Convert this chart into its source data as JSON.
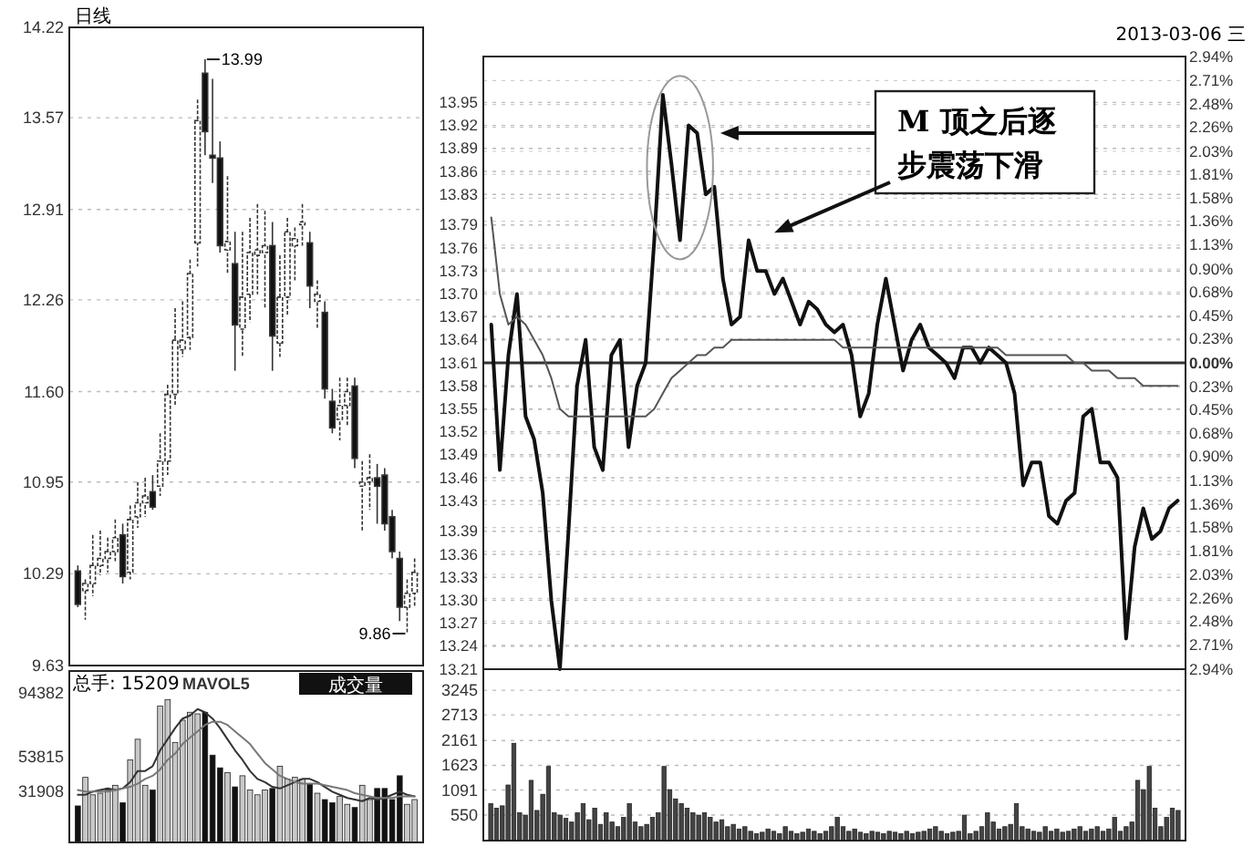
{
  "chart_data": [
    {
      "type": "candlestick",
      "categories": [
        null,
        null,
        null,
        null,
        null,
        null,
        null,
        null,
        null,
        null,
        null,
        null,
        null,
        null,
        null,
        null,
        null,
        null,
        null,
        null,
        null,
        null,
        null,
        null,
        null,
        null,
        null,
        null,
        null,
        null,
        null,
        null,
        null,
        null,
        null,
        null,
        null,
        null,
        null,
        null,
        null,
        null,
        null,
        null,
        null,
        null
      ],
      "ohlc": [
        [
          10.31,
          10.35,
          10.05,
          10.07
        ],
        [
          10.17,
          10.25,
          9.96,
          10.22
        ],
        [
          10.22,
          10.57,
          10.13,
          10.35
        ],
        [
          10.35,
          10.6,
          10.28,
          10.4
        ],
        [
          10.4,
          10.55,
          10.3,
          10.45
        ],
        [
          10.45,
          10.68,
          10.38,
          10.55
        ],
        [
          10.57,
          10.65,
          10.22,
          10.27
        ],
        [
          10.3,
          10.78,
          10.25,
          10.68
        ],
        [
          10.7,
          10.95,
          10.62,
          10.8
        ],
        [
          10.8,
          10.98,
          10.7,
          10.85
        ],
        [
          10.88,
          11.0,
          10.75,
          10.77
        ],
        [
          10.92,
          11.3,
          10.85,
          11.1
        ],
        [
          11.1,
          11.65,
          11.0,
          11.58
        ],
        [
          11.58,
          12.2,
          11.5,
          11.97
        ],
        [
          11.9,
          12.25,
          11.85,
          11.97
        ],
        [
          11.99,
          12.55,
          11.9,
          12.45
        ],
        [
          12.67,
          13.7,
          12.5,
          13.55
        ],
        [
          13.89,
          13.99,
          13.3,
          13.47
        ],
        [
          13.3,
          13.85,
          13.1,
          13.28
        ],
        [
          13.28,
          13.4,
          12.6,
          12.65
        ],
        [
          12.62,
          13.15,
          12.45,
          12.68
        ],
        [
          12.52,
          12.75,
          11.75,
          12.08
        ],
        [
          12.05,
          12.75,
          11.85,
          12.28
        ],
        [
          12.3,
          12.85,
          12.1,
          12.6
        ],
        [
          12.58,
          12.95,
          12.3,
          12.62
        ],
        [
          12.6,
          12.9,
          12.2,
          12.65
        ],
        [
          12.65,
          12.82,
          11.75,
          12.0
        ],
        [
          11.95,
          12.58,
          11.85,
          12.28
        ],
        [
          12.28,
          12.85,
          12.15,
          12.75
        ],
        [
          12.65,
          12.78,
          12.4,
          12.7
        ],
        [
          12.8,
          12.95,
          12.65,
          12.82
        ],
        [
          12.67,
          12.75,
          12.2,
          12.36
        ],
        [
          12.25,
          12.4,
          12.05,
          12.3
        ],
        [
          12.17,
          12.25,
          11.55,
          11.62
        ],
        [
          11.53,
          11.62,
          11.3,
          11.34
        ],
        [
          11.4,
          11.7,
          11.25,
          11.5
        ],
        [
          11.5,
          11.7,
          11.35,
          11.6
        ],
        [
          11.64,
          11.7,
          11.05,
          11.12
        ],
        [
          10.92,
          11.1,
          10.6,
          10.95
        ],
        [
          10.95,
          11.15,
          10.75,
          10.98
        ],
        [
          10.98,
          11.08,
          10.65,
          10.92
        ],
        [
          11.0,
          11.05,
          10.6,
          10.65
        ],
        [
          10.7,
          10.75,
          10.4,
          10.45
        ],
        [
          10.4,
          10.45,
          9.95,
          10.05
        ],
        [
          10.05,
          10.25,
          9.86,
          10.15
        ],
        [
          10.15,
          10.4,
          10.05,
          10.3
        ]
      ],
      "ylim": [
        9.63,
        14.22
      ],
      "yticks": [
        9.63,
        10.29,
        10.95,
        {
          "value": 11.6,
          "label": "11.60"
        },
        12.26,
        12.91,
        13.57,
        14.22
      ],
      "grid": "y",
      "annotations": [
        "日线",
        "13.99",
        "9.86"
      ]
    },
    {
      "type": "bar",
      "categories": [
        null,
        null,
        null,
        null,
        null,
        null,
        null,
        null,
        null,
        null,
        null,
        null,
        null,
        null,
        null,
        null,
        null,
        null,
        null,
        null,
        null,
        null,
        null,
        null,
        null,
        null,
        null,
        null,
        null,
        null,
        null,
        null,
        null,
        null,
        null,
        null,
        null,
        null,
        null,
        null,
        null,
        null,
        null,
        null,
        null,
        null
      ],
      "series": [
        {
          "type": "bar",
          "values": [
            23000,
            41000,
            30000,
            31000,
            33000,
            36000,
            25000,
            52000,
            65000,
            36000,
            33000,
            86000,
            90000,
            63000,
            77000,
            82000,
            81000,
            82000,
            55000,
            47000,
            44000,
            35000,
            42000,
            33000,
            30000,
            33000,
            34000,
            48000,
            40000,
            41000,
            40000,
            37000,
            31000,
            27000,
            25000,
            29000,
            24000,
            22000,
            36000,
            27000,
            34000,
            34000,
            27000,
            42000,
            24000,
            27000
          ],
          "colors": [
            "#111111",
            "#c8c8c8",
            "#c8c8c8",
            "#c8c8c8",
            "#c8c8c8",
            "#c8c8c8",
            "#111111",
            "#c8c8c8",
            "#c8c8c8",
            "#c8c8c8",
            "#111111",
            "#c8c8c8",
            "#c8c8c8",
            "#c8c8c8",
            "#c8c8c8",
            "#c8c8c8",
            "#c8c8c8",
            "#111111",
            "#111111",
            "#111111",
            "#c8c8c8",
            "#111111",
            "#c8c8c8",
            "#c8c8c8",
            "#c8c8c8",
            "#c8c8c8",
            "#111111",
            "#c8c8c8",
            "#c8c8c8",
            "#c8c8c8",
            "#c8c8c8",
            "#111111",
            "#c8c8c8",
            "#111111",
            "#111111",
            "#c8c8c8",
            "#c8c8c8",
            "#111111",
            "#c8c8c8",
            "#c8c8c8",
            "#111111",
            "#111111",
            "#111111",
            "#111111",
            "#c8c8c8",
            "#c8c8c8"
          ]
        },
        {
          "type": "line",
          "name": "MAVOL5",
          "color": "#333333",
          "values": [
            30000,
            30000,
            32000,
            33000,
            34000,
            33000,
            34000,
            38000,
            45000,
            45000,
            48000,
            58000,
            65000,
            72000,
            78000,
            80000,
            84000,
            82000,
            78000,
            72000,
            65000,
            58000,
            52000,
            45000,
            40000,
            38000,
            35000,
            34000,
            36000,
            38000,
            40000,
            40000,
            38000,
            35000,
            32000,
            30000,
            28000,
            27000,
            26000,
            28000,
            27000,
            28000,
            30000,
            32000,
            30000,
            29000
          ]
        },
        {
          "type": "line",
          "color": "#777777",
          "values": [
            33000,
            32000,
            32000,
            32000,
            32000,
            33000,
            34000,
            35000,
            37000,
            40000,
            42000,
            46000,
            52000,
            56000,
            62000,
            66000,
            70000,
            74000,
            76000,
            76000,
            74000,
            70000,
            66000,
            62000,
            56000,
            50000,
            46000,
            42000,
            40000,
            38000,
            37000,
            37000,
            37000,
            36000,
            35000,
            34000,
            33000,
            31000,
            30000,
            29000,
            28000,
            28000,
            28000,
            29000,
            29000,
            29000
          ]
        }
      ],
      "ylim": [
        0,
        108000
      ],
      "yticks": [
        31908,
        53815,
        94382
      ],
      "legend": "top left",
      "annotations": [
        "总手: 15209",
        "成交量"
      ]
    },
    {
      "type": "line",
      "categories": [
        null,
        null,
        null,
        null,
        null,
        null,
        null,
        null,
        null,
        null,
        null,
        null,
        null,
        null,
        null,
        null,
        null,
        null,
        null,
        null,
        null,
        null,
        null,
        null,
        null,
        null,
        null,
        null,
        null,
        null,
        null,
        null,
        null,
        null,
        null,
        null,
        null,
        null,
        null,
        null,
        null,
        null,
        null,
        null,
        null,
        null,
        null,
        null,
        null,
        null,
        null,
        null,
        null,
        null,
        null,
        null,
        null,
        null,
        null,
        null,
        null,
        null,
        null,
        null,
        null,
        null,
        null,
        null,
        null,
        null,
        null,
        null,
        null,
        null,
        null,
        null,
        null,
        null,
        null,
        null,
        null
      ],
      "series": [
        {
          "color": "#111111",
          "values": [
            13.66,
            13.47,
            13.62,
            13.7,
            13.54,
            13.51,
            13.44,
            13.3,
            13.21,
            13.39,
            13.58,
            13.64,
            13.5,
            13.47,
            13.62,
            13.64,
            13.5,
            13.58,
            13.61,
            13.77,
            13.96,
            13.87,
            13.77,
            13.92,
            13.91,
            13.83,
            13.84,
            13.72,
            13.66,
            13.67,
            13.77,
            13.73,
            13.73,
            13.7,
            13.72,
            13.69,
            13.66,
            13.69,
            13.68,
            13.66,
            13.65,
            13.66,
            13.62,
            13.54,
            13.57,
            13.66,
            13.72,
            13.66,
            13.6,
            13.64,
            13.66,
            13.63,
            13.62,
            13.61,
            13.59,
            13.63,
            13.63,
            13.61,
            13.63,
            13.62,
            13.61,
            13.57,
            13.45,
            13.48,
            13.48,
            13.41,
            13.4,
            13.43,
            13.44,
            13.54,
            13.55,
            13.48,
            13.48,
            13.46,
            13.25,
            13.37,
            13.42,
            13.38,
            13.39,
            13.42,
            13.43
          ]
        },
        {
          "color": "#555555",
          "values": [
            13.8,
            13.7,
            13.66,
            13.67,
            13.66,
            13.64,
            13.62,
            13.59,
            13.55,
            13.54,
            13.54,
            13.54,
            13.54,
            13.54,
            13.54,
            13.54,
            13.54,
            13.54,
            13.54,
            13.55,
            13.57,
            13.59,
            13.6,
            13.61,
            13.62,
            13.62,
            13.63,
            13.63,
            13.64,
            13.64,
            13.64,
            13.64,
            13.64,
            13.64,
            13.64,
            13.64,
            13.64,
            13.64,
            13.64,
            13.64,
            13.64,
            13.63,
            13.63,
            13.63,
            13.63,
            13.63,
            13.63,
            13.63,
            13.63,
            13.63,
            13.63,
            13.63,
            13.63,
            13.63,
            13.63,
            13.63,
            13.63,
            13.63,
            13.63,
            13.63,
            13.62,
            13.62,
            13.62,
            13.62,
            13.62,
            13.62,
            13.62,
            13.62,
            13.61,
            13.61,
            13.6,
            13.6,
            13.6,
            13.59,
            13.59,
            13.59,
            13.58,
            13.58,
            13.58,
            13.58,
            13.58
          ]
        }
      ],
      "ylim": [
        13.21,
        14.01
      ],
      "yticks": [
        13.21,
        13.24,
        13.27,
        {
          "value": 13.3,
          "label": "13.30"
        },
        13.33,
        13.36,
        13.39,
        13.43,
        13.46,
        13.49,
        13.52,
        13.55,
        13.58,
        13.61,
        13.64,
        13.67,
        {
          "value": 13.7,
          "label": "13.70"
        },
        13.73,
        13.76,
        13.79,
        13.83,
        13.86,
        13.89,
        13.92,
        13.95
      ],
      "y2lim": [
        -2.94,
        2.94
      ],
      "y2ticks": [
        {
          "value": 2.94,
          "label": "2.94%"
        },
        {
          "value": 2.71,
          "label": "2.71%"
        },
        {
          "value": 2.48,
          "label": "2.48%"
        },
        {
          "value": 2.26,
          "label": "2.26%"
        },
        {
          "value": 2.03,
          "label": "2.03%"
        },
        {
          "value": 1.81,
          "label": "1.81%"
        },
        {
          "value": 1.58,
          "label": "1.58%"
        },
        {
          "value": 1.36,
          "label": "1.36%"
        },
        {
          "value": 1.13,
          "label": "1.13%"
        },
        {
          "value": 0.9,
          "label": "0.90%"
        },
        {
          "value": 0.68,
          "label": "0.68%"
        },
        {
          "value": 0.45,
          "label": "0.45%"
        },
        {
          "value": 0.23,
          "label": "0.23%"
        },
        {
          "value": 0,
          "label": "0.00%"
        },
        {
          "value": -0.23,
          "label": "0.23%"
        },
        {
          "value": -0.45,
          "label": "0.45%"
        },
        {
          "value": -0.68,
          "label": "0.68%"
        },
        {
          "value": -0.9,
          "label": "0.90%"
        },
        {
          "value": -1.13,
          "label": "1.13%"
        },
        {
          "value": -1.36,
          "label": "1.36%"
        },
        {
          "value": -1.58,
          "label": "1.58%"
        },
        {
          "value": -1.81,
          "label": "1.81%"
        },
        {
          "value": -2.03,
          "label": "2.03%"
        },
        {
          "value": -2.26,
          "label": "2.26%"
        },
        {
          "value": -2.48,
          "label": "2.48%"
        },
        {
          "value": -2.71,
          "label": "2.71%"
        },
        {
          "value": -2.94,
          "label": "2.94%"
        }
      ],
      "ref_lines": [
        {
          "axis": "y2",
          "value": 0,
          "color": "#333333"
        }
      ],
      "grid": "y",
      "annotations": [
        "M 顶之后逐步震荡下滑",
        "2013-03-06 三"
      ]
    },
    {
      "type": "bar",
      "categories": [
        null,
        null,
        null,
        null,
        null,
        null,
        null,
        null,
        null,
        null,
        null,
        null,
        null,
        null,
        null,
        null,
        null,
        null,
        null,
        null,
        null,
        null,
        null,
        null,
        null,
        null,
        null,
        null,
        null,
        null,
        null,
        null,
        null,
        null,
        null,
        null,
        null,
        null,
        null,
        null,
        null,
        null,
        null,
        null,
        null,
        null,
        null,
        null,
        null,
        null,
        null,
        null,
        null,
        null,
        null,
        null,
        null,
        null,
        null,
        null,
        null,
        null,
        null,
        null,
        null,
        null,
        null,
        null,
        null,
        null,
        null,
        null,
        null,
        null,
        null,
        null,
        null,
        null,
        null,
        null,
        null,
        null,
        null,
        null,
        null,
        null,
        null,
        null,
        null,
        null,
        null,
        null,
        null,
        null,
        null,
        null,
        null,
        null,
        null,
        null,
        null,
        null,
        null,
        null,
        null,
        null,
        null,
        null,
        null,
        null,
        null,
        null,
        null,
        null,
        null,
        null,
        null,
        null,
        null,
        null
      ],
      "values": [
        800,
        700,
        750,
        1200,
        2100,
        600,
        550,
        1300,
        650,
        1000,
        1600,
        600,
        550,
        480,
        400,
        600,
        800,
        450,
        700,
        350,
        600,
        400,
        300,
        500,
        800,
        400,
        300,
        350,
        500,
        600,
        1600,
        1100,
        900,
        800,
        700,
        600,
        550,
        600,
        500,
        400,
        450,
        300,
        350,
        250,
        300,
        200,
        150,
        180,
        250,
        200,
        150,
        300,
        200,
        150,
        180,
        250,
        200,
        150,
        200,
        300,
        500,
        300,
        200,
        250,
        180,
        150,
        200,
        180,
        150,
        200,
        180,
        150,
        200,
        150,
        180,
        200,
        250,
        300,
        200,
        150,
        180,
        200,
        550,
        150,
        200,
        300,
        600,
        400,
        250,
        300,
        350,
        800,
        300,
        250,
        200,
        180,
        300,
        200,
        250,
        180,
        200,
        250,
        300,
        200,
        250,
        300,
        200,
        250,
        500,
        200,
        300,
        400,
        1300,
        1100,
        1600,
        700,
        300,
        500,
        700,
        650
      ],
      "color": "#444444",
      "ylim": [
        0,
        3700
      ],
      "yticks": [
        550,
        1091,
        1623,
        2161,
        2713,
        3245
      ],
      "grid": "y"
    }
  ]
}
